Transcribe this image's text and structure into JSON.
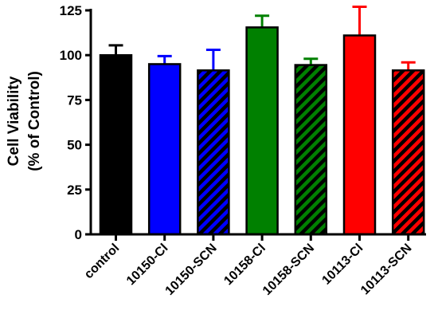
{
  "chart_data": {
    "type": "bar",
    "title": "",
    "xlabel": "",
    "ylabel_line1": "Cell Viability",
    "ylabel_line2": "(% of Control)",
    "ylim": [
      0,
      125
    ],
    "yticks": [
      0,
      25,
      50,
      75,
      100,
      125
    ],
    "ytick_labels": [
      "0",
      "25",
      "50",
      "75",
      "100",
      "125"
    ],
    "grid": false,
    "legend": "none",
    "categories": [
      "control",
      "10150-Cl",
      "10150-SCN",
      "10158-Cl",
      "10158-SCN",
      "10113-Cl",
      "10113-SCN"
    ],
    "values": [
      100,
      95,
      91.5,
      115.5,
      94.5,
      111,
      91.5
    ],
    "error_upper": [
      105.5,
      99.5,
      103,
      122,
      98,
      127,
      96
    ],
    "colors": [
      "#000000",
      "#0000ff",
      "#0000ff",
      "#008000",
      "#008000",
      "#ff0000",
      "#ff0000"
    ],
    "hatched": [
      false,
      false,
      true,
      false,
      true,
      false,
      true
    ]
  }
}
